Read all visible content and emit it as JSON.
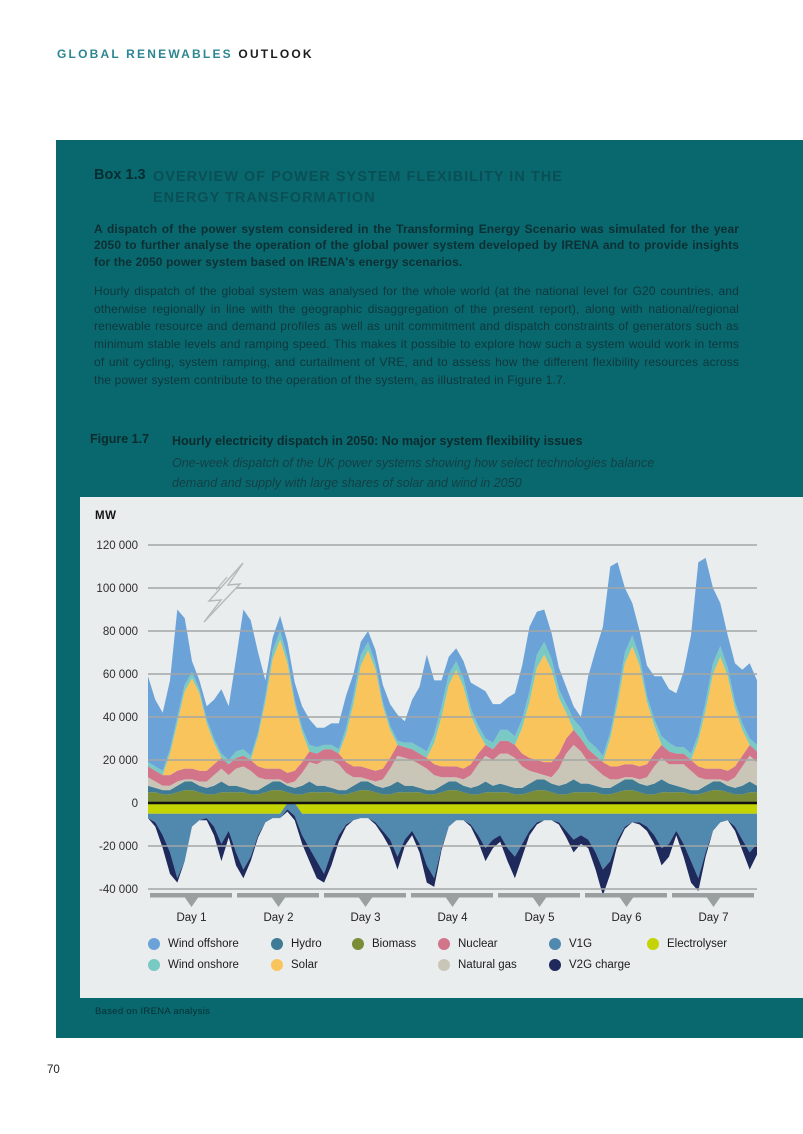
{
  "page": {
    "header_left": "GLOBAL RENEWABLES",
    "header_right": "OUTLOOK",
    "page_number": "70"
  },
  "box": {
    "label": "Box 1.3",
    "title_line1": "OVERVIEW OF POWER SYSTEM FLEXIBILITY IN THE",
    "title_line2": "ENERGY TRANSFORMATION",
    "lead_paragraph": "A dispatch of the power system considered in the Transforming Energy Scenario was simulated for the year 2050 to further analyse the operation of the global power system developed by IRENA and to provide insights for the 2050 power system based on IRENA's energy scenarios.",
    "body_paragraph": "Hourly dispatch of the global system was analysed for the whole world (at the national level for G20 countries, and otherwise regionally in line with the geographic disaggregation of the present report), along with national/regional renewable resource and demand profiles as well as unit commitment and dispatch constraints of generators such as minimum stable levels and ramping speed. This makes it possible to explore how such a system would work in terms of unit cycling, system ramping, and curtailment of VRE, and to assess how the different flexibility resources across the power system contribute to the operation of the system, as illustrated in Figure 1.7.",
    "source_note": "Based on IRENA analysis"
  },
  "figure": {
    "label": "Figure 1.7",
    "title": "Hourly electricity dispatch in 2050: No major system flexibility issues",
    "subtitle": "One-week dispatch of the UK power systems showing how select technologies balance demand and supply with large shares of solar and wind in 2050"
  },
  "chart_data": {
    "type": "area",
    "stacked": true,
    "unit": "MW",
    "ylabel": "MW",
    "ylim": [
      -40000,
      120000
    ],
    "grid": true,
    "legend_position": "bottom",
    "y_ticks": [
      {
        "value": 120000,
        "label": "120 000"
      },
      {
        "value": 100000,
        "label": "100 000"
      },
      {
        "value": 80000,
        "label": "80 000"
      },
      {
        "value": 60000,
        "label": "60 000"
      },
      {
        "value": 40000,
        "label": "40 000"
      },
      {
        "value": 20000,
        "label": "20 000"
      },
      {
        "value": 0,
        "label": "0"
      },
      {
        "value": -20000,
        "label": "-20 000"
      },
      {
        "value": -40000,
        "label": "-40 000"
      }
    ],
    "x_categories": [
      "Day 1",
      "Day 2",
      "Day 3",
      "Day 4",
      "Day 5",
      "Day 6",
      "Day 7"
    ],
    "samples_per_day": 12,
    "series": [
      {
        "name": "Biomass",
        "color": "#7a8d36",
        "values": [
          5000,
          5000,
          4000,
          4000,
          5000,
          6000,
          6000,
          5000,
          4000,
          4000,
          5000,
          5000,
          5000,
          5000,
          4000,
          4000,
          5000,
          6000,
          6000,
          5000,
          4000,
          4000,
          5000,
          5000,
          5000,
          5000,
          4000,
          4000,
          5000,
          6000,
          6000,
          5000,
          4000,
          4000,
          5000,
          5000,
          5000,
          5000,
          4000,
          4000,
          5000,
          6000,
          6000,
          5000,
          4000,
          4000,
          5000,
          5000,
          5000,
          5000,
          4000,
          4000,
          5000,
          6000,
          6000,
          5000,
          4000,
          4000,
          5000,
          5000,
          5000,
          5000,
          4000,
          4000,
          5000,
          6000,
          6000,
          5000,
          4000,
          4000,
          5000,
          5000,
          5000,
          5000,
          4000,
          4000,
          5000,
          6000,
          6000,
          5000,
          4000,
          4000,
          5000,
          5000
        ]
      },
      {
        "name": "Hydro",
        "color": "#3f7b94",
        "values": [
          3000,
          2000,
          2000,
          2000,
          3000,
          4000,
          4000,
          3000,
          3000,
          4000,
          5000,
          3000,
          3000,
          2000,
          2000,
          2000,
          3000,
          4000,
          4000,
          3000,
          3000,
          4000,
          5000,
          3000,
          3000,
          2000,
          2000,
          2000,
          3000,
          4000,
          4000,
          3000,
          3000,
          4000,
          5000,
          3000,
          3000,
          2000,
          2000,
          2000,
          3000,
          4000,
          4000,
          3000,
          3000,
          4000,
          5000,
          3000,
          4000,
          3000,
          3000,
          3000,
          4000,
          5000,
          5000,
          4000,
          4000,
          5000,
          6000,
          4000,
          4000,
          3000,
          3000,
          3000,
          4000,
          5000,
          5000,
          4000,
          4000,
          5000,
          6000,
          4000,
          3000,
          2000,
          2000,
          2000,
          3000,
          4000,
          4000,
          3000,
          3000,
          4000,
          5000,
          3000
        ]
      },
      {
        "name": "Natural gas",
        "color": "#c9c6b8",
        "values": [
          4000,
          3000,
          2000,
          2000,
          2000,
          1000,
          1000,
          2000,
          3000,
          5000,
          6000,
          5000,
          8000,
          10000,
          9000,
          6000,
          3000,
          1000,
          1000,
          1000,
          3000,
          6000,
          9000,
          10000,
          12000,
          13000,
          12000,
          8000,
          4000,
          2000,
          1000,
          2000,
          4000,
          8000,
          12000,
          13000,
          12000,
          11000,
          10000,
          7000,
          4000,
          2000,
          2000,
          3000,
          6000,
          10000,
          12000,
          12000,
          14000,
          15000,
          14000,
          10000,
          6000,
          3000,
          2000,
          3000,
          8000,
          14000,
          16000,
          15000,
          10000,
          8000,
          6000,
          4000,
          2000,
          1000,
          1000,
          2000,
          4000,
          8000,
          10000,
          9000,
          10000,
          11000,
          9000,
          6000,
          3000,
          1000,
          1000,
          2000,
          5000,
          9000,
          12000,
          11000
        ]
      },
      {
        "name": "Nuclear",
        "color": "#d2758a",
        "values": [
          5000,
          5000,
          5000,
          5000,
          5000,
          5000,
          5000,
          5000,
          5000,
          5000,
          5000,
          5000,
          5000,
          5000,
          5000,
          5000,
          5000,
          5000,
          5000,
          5000,
          5000,
          5000,
          5000,
          5000,
          5000,
          5000,
          5000,
          5000,
          5000,
          5000,
          5000,
          5000,
          5000,
          5000,
          5000,
          5000,
          5000,
          5000,
          5000,
          5000,
          5000,
          5000,
          5000,
          5000,
          5000,
          5000,
          5000,
          5000,
          6000,
          6000,
          6000,
          6000,
          6000,
          6000,
          6000,
          7000,
          7000,
          7000,
          7000,
          6000,
          6000,
          6000,
          6000,
          6000,
          6000,
          6000,
          6000,
          6000,
          6000,
          6000,
          6000,
          6000,
          5000,
          5000,
          5000,
          5000,
          5000,
          5000,
          5000,
          5000,
          5000,
          5000,
          5000,
          5000
        ]
      },
      {
        "name": "Solar",
        "color": "#f9c45c",
        "values": [
          0,
          0,
          0,
          10000,
          22000,
          36000,
          42000,
          36000,
          22000,
          10000,
          0,
          0,
          0,
          0,
          0,
          14000,
          31000,
          51000,
          60000,
          51000,
          31000,
          14000,
          0,
          0,
          0,
          0,
          0,
          13000,
          29000,
          47000,
          55000,
          47000,
          29000,
          13000,
          0,
          0,
          0,
          0,
          0,
          10000,
          23000,
          38000,
          45000,
          38000,
          23000,
          10000,
          0,
          0,
          0,
          0,
          0,
          12000,
          26000,
          43000,
          50000,
          43000,
          26000,
          12000,
          0,
          0,
          0,
          0,
          0,
          13000,
          29000,
          47000,
          55000,
          47000,
          29000,
          13000,
          0,
          0,
          0,
          0,
          0,
          12000,
          27000,
          44000,
          52000,
          44000,
          27000,
          12000,
          0,
          0
        ]
      },
      {
        "name": "Wind onshore",
        "color": "#79c9c4",
        "values": [
          2000,
          2000,
          2000,
          2000,
          3000,
          3000,
          3000,
          2000,
          2000,
          2000,
          2000,
          2000,
          3000,
          3000,
          2000,
          2000,
          3000,
          4000,
          4000,
          3000,
          2000,
          2000,
          3000,
          3000,
          2000,
          2000,
          2000,
          3000,
          4000,
          5000,
          4000,
          3000,
          2000,
          2000,
          2000,
          2000,
          3000,
          3000,
          3000,
          4000,
          5000,
          5000,
          4000,
          4000,
          3000,
          3000,
          3000,
          3000,
          5000,
          5000,
          4000,
          4000,
          5000,
          6000,
          6000,
          5000,
          4000,
          4000,
          5000,
          5000,
          4000,
          4000,
          3000,
          3000,
          4000,
          5000,
          5000,
          4000,
          3000,
          3000,
          4000,
          4000,
          3000,
          3000,
          3000,
          3000,
          4000,
          5000,
          5000,
          4000,
          3000,
          3000,
          3000,
          3000
        ]
      },
      {
        "name": "Wind offshore",
        "color": "#6ba3d9",
        "values": [
          40000,
          31000,
          27000,
          32000,
          50000,
          31000,
          5000,
          4000,
          6000,
          18000,
          30000,
          25000,
          43000,
          65000,
          63000,
          37000,
          7000,
          6000,
          7000,
          7000,
          8000,
          10000,
          12000,
          9000,
          8000,
          10000,
          12000,
          15000,
          10000,
          6000,
          5000,
          6000,
          8000,
          10000,
          12000,
          10000,
          20000,
          28000,
          45000,
          25000,
          12000,
          8000,
          6000,
          8000,
          12000,
          18000,
          22000,
          18000,
          12000,
          15000,
          20000,
          25000,
          30000,
          20000,
          15000,
          12000,
          10000,
          8000,
          6000,
          5000,
          30000,
          45000,
          60000,
          77000,
          62000,
          30000,
          15000,
          12000,
          14000,
          20000,
          28000,
          25000,
          25000,
          35000,
          55000,
          80000,
          67000,
          35000,
          20000,
          15000,
          18000,
          25000,
          35000,
          30000
        ]
      },
      {
        "name": "Electrolyser",
        "color": "#c3d400",
        "values": [
          -5000,
          -5000,
          -5000,
          -5000,
          -5000,
          -5000,
          -5000,
          -5000,
          -5000,
          -5000,
          -5000,
          -5000,
          -5000,
          -5000,
          -5000,
          -5000,
          -5000,
          -5000,
          -5000,
          0,
          0,
          -5000,
          -5000,
          -5000,
          -5000,
          -5000,
          -5000,
          -5000,
          -5000,
          -5000,
          -5000,
          -5000,
          -5000,
          -5000,
          -5000,
          -5000,
          -5000,
          -5000,
          -5000,
          -5000,
          -5000,
          -5000,
          -5000,
          -5000,
          -5000,
          -5000,
          -5000,
          -5000,
          -5000,
          -5000,
          -5000,
          -5000,
          -5000,
          -5000,
          -5000,
          -5000,
          -5000,
          -5000,
          -5000,
          -5000,
          -5000,
          -5000,
          -5000,
          -5000,
          -5000,
          -5000,
          -5000,
          -5000,
          -5000,
          -5000,
          -5000,
          -5000,
          -5000,
          -5000,
          -5000,
          -5000,
          -5000,
          -5000,
          -5000,
          -5000,
          -5000,
          -5000,
          -5000,
          -5000
        ]
      },
      {
        "name": "V1G",
        "color": "#5088ae",
        "values": [
          -2000,
          -4000,
          -10000,
          -18000,
          -30000,
          -22000,
          -6000,
          -3000,
          -2000,
          -6000,
          -14000,
          -8000,
          -18000,
          -26000,
          -20000,
          -10000,
          -4000,
          -2000,
          -2000,
          -3000,
          -6000,
          -10000,
          -16000,
          -22000,
          -28000,
          -18000,
          -10000,
          -5000,
          -3000,
          -2000,
          -2000,
          -4000,
          -8000,
          -12000,
          -20000,
          -12000,
          -8000,
          -14000,
          -24000,
          -30000,
          -16000,
          -6000,
          -3000,
          -3000,
          -5000,
          -10000,
          -16000,
          -12000,
          -10000,
          -16000,
          -20000,
          -14000,
          -8000,
          -4000,
          -3000,
          -3000,
          -4000,
          -8000,
          -12000,
          -10000,
          -12000,
          -18000,
          -26000,
          -22000,
          -12000,
          -6000,
          -4000,
          -4000,
          -6000,
          -10000,
          -16000,
          -14000,
          -8000,
          -14000,
          -22000,
          -30000,
          -18000,
          -8000,
          -4000,
          -3000,
          -6000,
          -12000,
          -18000,
          -14000
        ]
      },
      {
        "name": "V2G charge",
        "color": "#1f2a5c",
        "values": [
          0,
          -2000,
          -6000,
          -10000,
          -2000,
          0,
          0,
          0,
          -1000,
          -4000,
          -8000,
          -3000,
          -6000,
          -4000,
          -2000,
          -1000,
          0,
          0,
          0,
          -1000,
          -2000,
          -4000,
          -6000,
          -8000,
          -4000,
          -6000,
          -3000,
          -1000,
          0,
          0,
          0,
          -1000,
          -2000,
          -4000,
          -6000,
          -3000,
          -2000,
          -4000,
          -8000,
          -4000,
          -1000,
          0,
          0,
          0,
          -1000,
          -3000,
          -6000,
          -4000,
          -3000,
          -6000,
          -10000,
          -6000,
          -2000,
          -1000,
          0,
          0,
          -1000,
          -3000,
          -6000,
          -4000,
          -4000,
          -8000,
          -12000,
          -6000,
          -2000,
          -1000,
          0,
          -1000,
          -2000,
          -4000,
          -8000,
          -6000,
          -2000,
          -6000,
          -10000,
          -6000,
          -2000,
          0,
          0,
          0,
          -2000,
          -5000,
          -8000,
          -5000
        ]
      }
    ],
    "legend": [
      {
        "label": "Wind offshore",
        "color": "#6ba3d9",
        "row": 0,
        "col": 0
      },
      {
        "label": "Hydro",
        "color": "#3f7b94",
        "row": 0,
        "col": 1
      },
      {
        "label": "Biomass",
        "color": "#7a8d36",
        "row": 0,
        "col": 2
      },
      {
        "label": "Nuclear",
        "color": "#d2758a",
        "row": 0,
        "col": 3
      },
      {
        "label": "V1G",
        "color": "#5088ae",
        "row": 0,
        "col": 4
      },
      {
        "label": "Electrolyser",
        "color": "#c3d400",
        "row": 0,
        "col": 5
      },
      {
        "label": "Wind onshore",
        "color": "#79c9c4",
        "row": 1,
        "col": 0
      },
      {
        "label": "Solar",
        "color": "#f9c45c",
        "row": 1,
        "col": 1
      },
      {
        "label": "Natural gas",
        "color": "#c9c6b8",
        "row": 1,
        "col": 3
      },
      {
        "label": "V2G charge",
        "color": "#1f2a5c",
        "row": 1,
        "col": 4
      }
    ]
  }
}
